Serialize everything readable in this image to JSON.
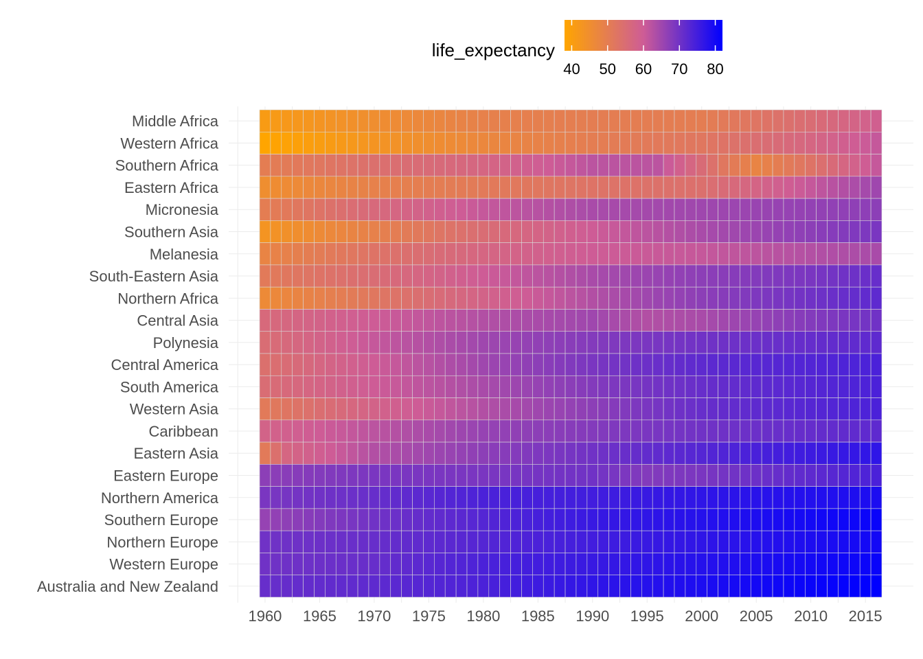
{
  "chart_data": {
    "type": "heatmap",
    "title": "",
    "xlabel": "",
    "ylabel": "",
    "x_ticks": [
      1960,
      1965,
      1970,
      1975,
      1980,
      1985,
      1990,
      1995,
      2000,
      2005,
      2010,
      2015
    ],
    "x_range": [
      1960,
      2016
    ],
    "legend": {
      "title": "life_expectancy",
      "position": "top",
      "ticks": [
        40,
        50,
        60,
        70,
        80
      ],
      "range": [
        38,
        82
      ],
      "colors": [
        "#ffa500",
        "#0000ff"
      ]
    },
    "regions": [
      "Middle Africa",
      "Western Africa",
      "Southern Africa",
      "Eastern Africa",
      "Micronesia",
      "Southern Asia",
      "Melanesia",
      "South-Eastern Asia",
      "Northern Africa",
      "Central Asia",
      "Polynesia",
      "Central America",
      "South America",
      "Western Asia",
      "Caribbean",
      "Eastern Asia",
      "Eastern Europe",
      "Northern America",
      "Southern Europe",
      "Northern Europe",
      "Western Europe",
      "Australia and New Zealand"
    ],
    "series_anchors": {
      "Middle Africa": [
        [
          1960,
          41
        ],
        [
          1970,
          45
        ],
        [
          1980,
          49
        ],
        [
          1990,
          50
        ],
        [
          2000,
          50
        ],
        [
          2010,
          55
        ],
        [
          2016,
          59
        ]
      ],
      "Western Africa": [
        [
          1960,
          38
        ],
        [
          1970,
          43
        ],
        [
          1980,
          47
        ],
        [
          1990,
          50
        ],
        [
          2000,
          52
        ],
        [
          2010,
          57
        ],
        [
          2016,
          61
        ]
      ],
      "Southern Africa": [
        [
          1960,
          50
        ],
        [
          1970,
          54
        ],
        [
          1980,
          57
        ],
        [
          1990,
          62
        ],
        [
          1996,
          62
        ],
        [
          2002,
          52
        ],
        [
          2005,
          48
        ],
        [
          2010,
          53
        ],
        [
          2016,
          61
        ]
      ],
      "Eastern Africa": [
        [
          1960,
          45
        ],
        [
          1970,
          49
        ],
        [
          1980,
          51
        ],
        [
          1990,
          53
        ],
        [
          2000,
          54
        ],
        [
          2010,
          61
        ],
        [
          2016,
          65
        ]
      ],
      "Micronesia": [
        [
          1960,
          50
        ],
        [
          1970,
          56
        ],
        [
          1980,
          61
        ],
        [
          1990,
          64
        ],
        [
          2000,
          65
        ],
        [
          2016,
          67
        ]
      ],
      "Southern Asia": [
        [
          1960,
          43
        ],
        [
          1970,
          49
        ],
        [
          1980,
          55
        ],
        [
          1990,
          60
        ],
        [
          2000,
          64
        ],
        [
          2010,
          67
        ],
        [
          2016,
          69
        ]
      ],
      "Melanesia": [
        [
          1960,
          48
        ],
        [
          1970,
          53
        ],
        [
          1980,
          57
        ],
        [
          1990,
          60
        ],
        [
          2000,
          61
        ],
        [
          2016,
          64
        ]
      ],
      "South-Eastern Asia": [
        [
          1960,
          51
        ],
        [
          1970,
          55
        ],
        [
          1980,
          60
        ],
        [
          1990,
          64
        ],
        [
          2000,
          67
        ],
        [
          2010,
          69
        ],
        [
          2016,
          71
        ]
      ],
      "Northern Africa": [
        [
          1960,
          46
        ],
        [
          1970,
          52
        ],
        [
          1980,
          58
        ],
        [
          1990,
          63
        ],
        [
          2000,
          67
        ],
        [
          2010,
          70
        ],
        [
          2016,
          72
        ]
      ],
      "Central Asia": [
        [
          1960,
          56
        ],
        [
          1970,
          60
        ],
        [
          1980,
          63
        ],
        [
          1990,
          65
        ],
        [
          1995,
          63
        ],
        [
          2000,
          64
        ],
        [
          2010,
          68
        ],
        [
          2016,
          70
        ]
      ],
      "Polynesia": [
        [
          1960,
          55
        ],
        [
          1970,
          61
        ],
        [
          1980,
          65
        ],
        [
          1990,
          68
        ],
        [
          2000,
          70
        ],
        [
          2016,
          72
        ]
      ],
      "Central America": [
        [
          1960,
          54
        ],
        [
          1970,
          60
        ],
        [
          1980,
          65
        ],
        [
          1990,
          69
        ],
        [
          2000,
          72
        ],
        [
          2016,
          74
        ]
      ],
      "South America": [
        [
          1960,
          55
        ],
        [
          1970,
          60
        ],
        [
          1980,
          64
        ],
        [
          1990,
          68
        ],
        [
          2000,
          71
        ],
        [
          2016,
          74
        ]
      ],
      "Western Asia": [
        [
          1960,
          51
        ],
        [
          1970,
          58
        ],
        [
          1980,
          63
        ],
        [
          1990,
          67
        ],
        [
          2000,
          71
        ],
        [
          2016,
          74
        ]
      ],
      "Caribbean": [
        [
          1960,
          58
        ],
        [
          1970,
          62
        ],
        [
          1980,
          66
        ],
        [
          1990,
          68
        ],
        [
          2000,
          70
        ],
        [
          2016,
          72
        ]
      ],
      "Eastern Asia": [
        [
          1960,
          51
        ],
        [
          1962,
          57
        ],
        [
          1970,
          63
        ],
        [
          1980,
          67
        ],
        [
          1990,
          70
        ],
        [
          2000,
          73
        ],
        [
          2016,
          77
        ]
      ],
      "Eastern Europe": [
        [
          1960,
          67
        ],
        [
          1970,
          69
        ],
        [
          1980,
          69
        ],
        [
          1990,
          70
        ],
        [
          1995,
          68
        ],
        [
          2000,
          69
        ],
        [
          2010,
          72
        ],
        [
          2016,
          74
        ]
      ],
      "Northern America": [
        [
          1960,
          69
        ],
        [
          1970,
          71
        ],
        [
          1980,
          74
        ],
        [
          1990,
          75
        ],
        [
          2000,
          77
        ],
        [
          2016,
          79
        ]
      ],
      "Southern Europe": [
        [
          1960,
          66
        ],
        [
          1970,
          70
        ],
        [
          1980,
          73
        ],
        [
          1990,
          76
        ],
        [
          2000,
          78
        ],
        [
          2016,
          81
        ]
      ],
      "Northern Europe": [
        [
          1960,
          70
        ],
        [
          1970,
          71
        ],
        [
          1980,
          73
        ],
        [
          1990,
          75
        ],
        [
          2000,
          77
        ],
        [
          2016,
          80
        ]
      ],
      "Western Europe": [
        [
          1960,
          70
        ],
        [
          1970,
          71
        ],
        [
          1980,
          74
        ],
        [
          1990,
          76
        ],
        [
          2000,
          78
        ],
        [
          2016,
          81
        ]
      ],
      "Australia and New Zealand": [
        [
          1960,
          71
        ],
        [
          1970,
          72
        ],
        [
          1980,
          74
        ],
        [
          1990,
          77
        ],
        [
          2000,
          79
        ],
        [
          2010,
          81
        ],
        [
          2016,
          82
        ]
      ]
    }
  }
}
